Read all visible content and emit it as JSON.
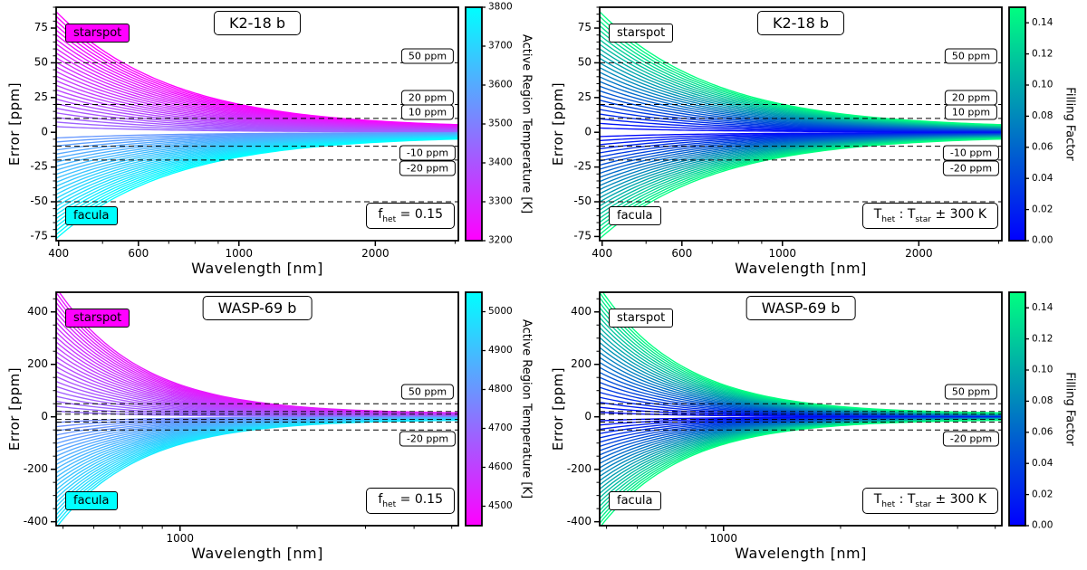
{
  "figure": {
    "background": "#FFFFFF"
  },
  "chart_data": [
    {
      "type": "line",
      "panel": "top-left",
      "title": "K2-18 b",
      "xlabel": "Wavelength [nm]",
      "ylabel": "Error [ppm]",
      "xscale": "log",
      "xlim": [
        395,
        3050
      ],
      "ylim": [
        -78,
        90
      ],
      "xticks": [
        {
          "v": 400,
          "l": "400"
        },
        {
          "v": 600,
          "l": "600"
        },
        {
          "v": 1000,
          "l": "1000"
        },
        {
          "v": 2000,
          "l": "2000"
        }
      ],
      "xminor": [
        500,
        700,
        800,
        900,
        3000
      ],
      "yticks": [
        {
          "v": -75,
          "l": "-75"
        },
        {
          "v": -50,
          "l": "-50"
        },
        {
          "v": -25,
          "l": "-25"
        },
        {
          "v": 0,
          "l": "0"
        },
        {
          "v": 25,
          "l": "25"
        },
        {
          "v": 50,
          "l": "50"
        },
        {
          "v": 75,
          "l": "75"
        }
      ],
      "yminor_step": 5,
      "hlines": [
        50,
        20,
        10,
        -10,
        -20,
        -50
      ],
      "hline_labels": [
        {
          "label": "50 ppm",
          "at": 55
        },
        {
          "label": "20 ppm",
          "at": 25
        },
        {
          "label": "10 ppm",
          "at": 14.5
        },
        {
          "label": "-10 ppm",
          "at": -15
        },
        {
          "label": "-20 ppm",
          "at": -26
        }
      ],
      "annotations": {
        "starspot": "starspot",
        "starspot_bg": "#FF00FF",
        "facula": "facula",
        "facula_bg": "#00FFFF"
      },
      "note_parts": [
        {
          "t": "f"
        },
        {
          "t": "het",
          "sub": true
        },
        {
          "t": " = 0.15"
        }
      ],
      "colorbar": {
        "label": "Active Region Temperature [K]",
        "min": 3200,
        "max": 3800,
        "color_min": "#FF00FF",
        "color_max": "#00FFFF",
        "ticks": [
          {
            "v": 3200,
            "l": "3200"
          },
          {
            "v": 3300,
            "l": "3300"
          },
          {
            "v": 3400,
            "l": "3400"
          },
          {
            "v": 3500,
            "l": "3500"
          },
          {
            "v": 3600,
            "l": "3600"
          },
          {
            "v": 3700,
            "l": "3700"
          },
          {
            "v": 3800,
            "l": "3800"
          }
        ]
      },
      "fan": {
        "x0": 400,
        "decay": {
          "a": 0.966,
          "b": 0.034,
          "p": 1.7
        },
        "groups": [
          {
            "name": "starspot",
            "n": 26,
            "cmin": 3200,
            "cmax": 3437,
            "amp_min": 85,
            "amp_max": 4
          },
          {
            "name": "facula",
            "n": 26,
            "cmin": 3558,
            "cmax": 3800,
            "amp_min": -4,
            "amp_max": -75
          }
        ]
      }
    },
    {
      "type": "line",
      "panel": "top-right",
      "title": "K2-18 b",
      "xlabel": "Wavelength [nm]",
      "ylabel": "Error [ppm]",
      "xscale": "log",
      "xlim": [
        395,
        3050
      ],
      "ylim": [
        -78,
        90
      ],
      "xticks": [
        {
          "v": 400,
          "l": "400"
        },
        {
          "v": 600,
          "l": "600"
        },
        {
          "v": 1000,
          "l": "1000"
        },
        {
          "v": 2000,
          "l": "2000"
        }
      ],
      "xminor": [
        500,
        700,
        800,
        900,
        3000
      ],
      "yticks": [
        {
          "v": -75,
          "l": "-75"
        },
        {
          "v": -50,
          "l": "-50"
        },
        {
          "v": -25,
          "l": "-25"
        },
        {
          "v": 0,
          "l": "0"
        },
        {
          "v": 25,
          "l": "25"
        },
        {
          "v": 50,
          "l": "50"
        },
        {
          "v": 75,
          "l": "75"
        }
      ],
      "yminor_step": 5,
      "hlines": [
        50,
        20,
        10,
        -10,
        -20,
        -50
      ],
      "hline_labels": [
        {
          "label": "50 ppm",
          "at": 55
        },
        {
          "label": "20 ppm",
          "at": 25
        },
        {
          "label": "10 ppm",
          "at": 14.5
        },
        {
          "label": "-10 ppm",
          "at": -15
        },
        {
          "label": "-20 ppm",
          "at": -26
        }
      ],
      "annotations": {
        "starspot": "starspot",
        "starspot_bg": "#FFFFFF",
        "facula": "facula",
        "facula_bg": "#FFFFFF"
      },
      "note_parts": [
        {
          "t": "T"
        },
        {
          "t": "het",
          "sub": true
        },
        {
          "t": " : T"
        },
        {
          "t": "star",
          "sub": true
        },
        {
          "t": " ± 300 K"
        }
      ],
      "colorbar": {
        "label": "Filling Factor",
        "min": 0,
        "max": 0.15,
        "color_min": "#0000FF",
        "color_max": "#00FF80",
        "ticks": [
          {
            "v": 0,
            "l": "0.00"
          },
          {
            "v": 0.02,
            "l": "0.02"
          },
          {
            "v": 0.04,
            "l": "0.04"
          },
          {
            "v": 0.06,
            "l": "0.06"
          },
          {
            "v": 0.08,
            "l": "0.08"
          },
          {
            "v": 0.1,
            "l": "0.10"
          },
          {
            "v": 0.12,
            "l": "0.12"
          },
          {
            "v": 0.14,
            "l": "0.14"
          }
        ]
      },
      "fan": {
        "x0": 400,
        "decay": {
          "a": 0.966,
          "b": 0.034,
          "p": 1.7
        },
        "groups": [
          {
            "name": "starspot",
            "n": 26,
            "cmin": 0.005,
            "cmax": 0.15,
            "amp_min": 3,
            "amp_max": 85
          },
          {
            "name": "facula",
            "n": 26,
            "cmin": 0.005,
            "cmax": 0.15,
            "amp_min": -3,
            "amp_max": -75
          }
        ]
      }
    },
    {
      "type": "line",
      "panel": "bottom-left",
      "title": "WASP-69 b",
      "xlabel": "Wavelength [nm]",
      "ylabel": "Error [ppm]",
      "xscale": "log",
      "xlim": [
        480,
        5200
      ],
      "ylim": [
        -415,
        475
      ],
      "xticks": [
        {
          "v": 1000,
          "l": "1000"
        }
      ],
      "xminor": [
        500,
        600,
        700,
        800,
        900,
        2000,
        3000,
        4000,
        5000
      ],
      "yticks": [
        {
          "v": -400,
          "l": "-400"
        },
        {
          "v": -200,
          "l": "-200"
        },
        {
          "v": 0,
          "l": "0"
        },
        {
          "v": 200,
          "l": "200"
        },
        {
          "v": 400,
          "l": "400"
        }
      ],
      "yminor_step": 50,
      "hlines": [
        50,
        20,
        10,
        -10,
        -20,
        -50
      ],
      "hline_labels": [
        {
          "label": "50 ppm",
          "at": 95
        },
        {
          "label": "-20 ppm",
          "at": -85
        }
      ],
      "annotations": {
        "starspot": "starspot",
        "starspot_bg": "#FF00FF",
        "facula": "facula",
        "facula_bg": "#00FFFF"
      },
      "note_parts": [
        {
          "t": "f"
        },
        {
          "t": "het",
          "sub": true
        },
        {
          "t": " = 0.15"
        }
      ],
      "colorbar": {
        "label": "Active Region Temperature [K]",
        "min": 4450,
        "max": 5050,
        "color_min": "#FF00FF",
        "color_max": "#00FFFF",
        "ticks": [
          {
            "v": 4500,
            "l": "4500"
          },
          {
            "v": 4600,
            "l": "4600"
          },
          {
            "v": 4700,
            "l": "4700"
          },
          {
            "v": 4800,
            "l": "4800"
          },
          {
            "v": 4900,
            "l": "4900"
          },
          {
            "v": 5000,
            "l": "5000"
          }
        ]
      },
      "fan": {
        "x0": 500,
        "decay": {
          "a": 0.975,
          "b": 0.025,
          "p": 2.0
        },
        "groups": [
          {
            "name": "starspot",
            "n": 26,
            "cmin": 4500,
            "cmax": 4700,
            "amp_min": 455,
            "amp_max": 20
          },
          {
            "name": "facula",
            "n": 26,
            "cmin": 4780,
            "cmax": 5000,
            "amp_min": -20,
            "amp_max": -390
          }
        ]
      }
    },
    {
      "type": "line",
      "panel": "bottom-right",
      "title": "WASP-69 b",
      "xlabel": "Wavelength [nm]",
      "ylabel": "Error [ppm]",
      "xscale": "log",
      "xlim": [
        480,
        5200
      ],
      "ylim": [
        -415,
        475
      ],
      "xticks": [
        {
          "v": 1000,
          "l": "1000"
        }
      ],
      "xminor": [
        500,
        600,
        700,
        800,
        900,
        2000,
        3000,
        4000,
        5000
      ],
      "yticks": [
        {
          "v": -400,
          "l": "-400"
        },
        {
          "v": -200,
          "l": "-200"
        },
        {
          "v": 0,
          "l": "0"
        },
        {
          "v": 200,
          "l": "200"
        },
        {
          "v": 400,
          "l": "400"
        }
      ],
      "yminor_step": 50,
      "hlines": [
        50,
        20,
        10,
        -10,
        -20,
        -50
      ],
      "hline_labels": [
        {
          "label": "50 ppm",
          "at": 95
        },
        {
          "label": "-20 ppm",
          "at": -85
        }
      ],
      "annotations": {
        "starspot": "starspot",
        "starspot_bg": "#FFFFFF",
        "facula": "facula",
        "facula_bg": "#FFFFFF"
      },
      "note_parts": [
        {
          "t": "T"
        },
        {
          "t": "het",
          "sub": true
        },
        {
          "t": " : T"
        },
        {
          "t": "star",
          "sub": true
        },
        {
          "t": " ± 300 K"
        }
      ],
      "colorbar": {
        "label": "Filling Factor",
        "min": 0,
        "max": 0.15,
        "color_min": "#0000FF",
        "color_max": "#00FF80",
        "ticks": [
          {
            "v": 0,
            "l": "0.00"
          },
          {
            "v": 0.02,
            "l": "0.02"
          },
          {
            "v": 0.04,
            "l": "0.04"
          },
          {
            "v": 0.06,
            "l": "0.06"
          },
          {
            "v": 0.08,
            "l": "0.08"
          },
          {
            "v": 0.1,
            "l": "0.10"
          },
          {
            "v": 0.12,
            "l": "0.12"
          },
          {
            "v": 0.14,
            "l": "0.14"
          }
        ]
      },
      "fan": {
        "x0": 500,
        "decay": {
          "a": 0.975,
          "b": 0.025,
          "p": 2.0
        },
        "groups": [
          {
            "name": "starspot",
            "n": 26,
            "cmin": 0.005,
            "cmax": 0.15,
            "amp_min": 16,
            "amp_max": 455
          },
          {
            "name": "facula",
            "n": 26,
            "cmin": 0.005,
            "cmax": 0.15,
            "amp_min": -14,
            "amp_max": -390
          }
        ]
      }
    }
  ]
}
